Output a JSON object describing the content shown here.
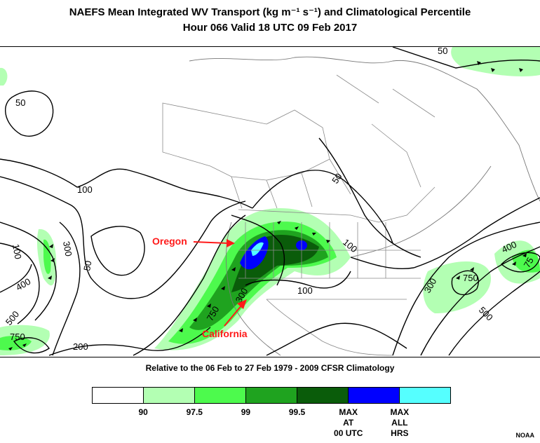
{
  "title_line1": "NAEFS Mean Integrated WV Transport (kg m⁻¹ s⁻¹) and Climatological Percentile",
  "title_line2": "Hour 066 Valid 18 UTC 09 Feb 2017",
  "subtitle": "Relative to the 06 Feb to 27 Feb 1979 - 2009 CFSR Climatology",
  "annotations": {
    "oregon": "Oregon",
    "california": "California"
  },
  "contour_labels": {
    "c50_nw": "50",
    "c50_ne": "50",
    "c50_mid": "50",
    "c50_pac": "50",
    "c100_w": "100",
    "c100_pac": "100",
    "c100_us": "100",
    "c100_sw": "100",
    "c200": "200",
    "c300_pac": "300",
    "c300_sw": "300",
    "c300_atl": "300",
    "c400_pac": "400",
    "c400_atl": "400",
    "c500_pac": "500",
    "c500_atl": "500",
    "c750_pac": "750",
    "c750_w": "750",
    "c750_atl": "750",
    "c750_atl2": "75"
  },
  "legend": {
    "colors": [
      "#ffffff",
      "#b3ffb3",
      "#4dfa4d",
      "#1fa31f",
      "#0a5c0a",
      "#0000ff",
      "#55ffff"
    ],
    "labels": [
      "90",
      "97.5",
      "99",
      "99.5",
      "MAX\nAT\n00 UTC",
      "MAX\nALL\nHRS"
    ]
  },
  "credit": "NOAA"
}
